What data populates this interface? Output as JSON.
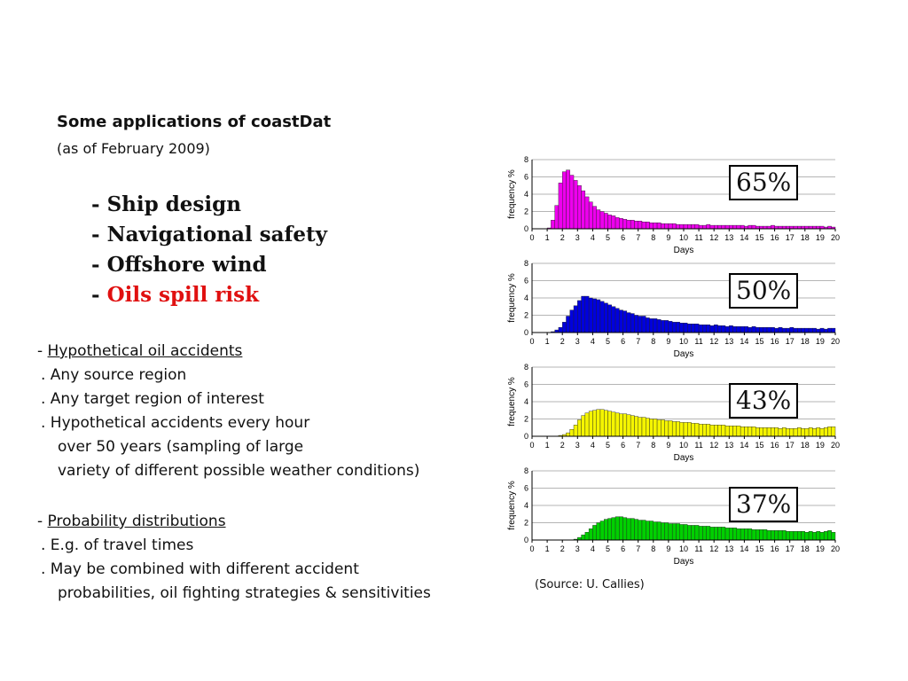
{
  "header": {
    "title": "Some applications of coastDat",
    "subtitle": "(as of February 2009)"
  },
  "applications": [
    {
      "dash": "- ",
      "label": "Ship design",
      "highlight": false
    },
    {
      "dash": "- ",
      "label": "Navigational safety",
      "highlight": false
    },
    {
      "dash": "- ",
      "label": "Offshore wind",
      "highlight": false
    },
    {
      "dash": "- ",
      "label": "Oils spill risk",
      "highlight": true
    }
  ],
  "oil_section": {
    "heading": "Hypothetical oil accidents",
    "items": [
      ". Any source region",
      ". Any target region of interest",
      ". Hypothetical accidents every hour"
    ],
    "continuation": [
      "over 50 years (sampling of large",
      "variety of different possible weather conditions)"
    ]
  },
  "prob_section": {
    "heading": "Probability distributions",
    "items": [
      ". E.g. of travel times",
      ". May be combined with different accident"
    ],
    "continuation": [
      "probabilities, oil fighting strategies & sensitivities"
    ]
  },
  "source": "(Source: U. Callies)",
  "colors": {
    "magenta": "#ee00ee",
    "blue": "#0000dd",
    "yellow": "#f5f500",
    "green": "#00d000",
    "highlight_red": "#e01010"
  },
  "chart_data": [
    {
      "type": "bar",
      "percentage": "65%",
      "color": "#ee00ee",
      "xlabel": "Days",
      "ylabel": "frequency %",
      "xlim": [
        0,
        20
      ],
      "ylim": [
        0,
        8
      ],
      "xticks": [
        "0",
        "1",
        "2",
        "3",
        "4",
        "5",
        "6",
        "7",
        "8",
        "9",
        "10",
        "11",
        "12",
        "13",
        "14",
        "15",
        "16",
        "17",
        "18",
        "19",
        "20"
      ],
      "yticks": [
        "0",
        "2",
        "4",
        "6",
        "8"
      ],
      "bin_width_days": 0.25,
      "values": [
        0,
        0,
        0,
        0,
        0.1,
        1.0,
        2.7,
        5.3,
        6.6,
        6.8,
        6.2,
        5.6,
        5.0,
        4.4,
        3.7,
        3.1,
        2.6,
        2.2,
        2.0,
        1.8,
        1.6,
        1.5,
        1.3,
        1.2,
        1.1,
        1.0,
        1.0,
        0.9,
        0.9,
        0.8,
        0.8,
        0.7,
        0.7,
        0.7,
        0.6,
        0.6,
        0.6,
        0.6,
        0.5,
        0.5,
        0.5,
        0.5,
        0.5,
        0.5,
        0.4,
        0.4,
        0.5,
        0.4,
        0.4,
        0.4,
        0.4,
        0.4,
        0.4,
        0.4,
        0.4,
        0.4,
        0.3,
        0.4,
        0.4,
        0.3,
        0.3,
        0.3,
        0.3,
        0.4,
        0.3,
        0.3,
        0.3,
        0.3,
        0.3,
        0.3,
        0.3,
        0.3,
        0.3,
        0.3,
        0.3,
        0.3,
        0.3,
        0.2,
        0.3,
        0.2
      ]
    },
    {
      "type": "bar",
      "percentage": "50%",
      "color": "#0000dd",
      "xlabel": "Days",
      "ylabel": "frequency %",
      "xlim": [
        0,
        20
      ],
      "ylim": [
        0,
        8
      ],
      "xticks": [
        "0",
        "1",
        "2",
        "3",
        "4",
        "5",
        "6",
        "7",
        "8",
        "9",
        "10",
        "11",
        "12",
        "13",
        "14",
        "15",
        "16",
        "17",
        "18",
        "19",
        "20"
      ],
      "yticks": [
        "0",
        "2",
        "4",
        "6",
        "8"
      ],
      "bin_width_days": 0.25,
      "values": [
        0,
        0,
        0,
        0,
        0,
        0.1,
        0.3,
        0.6,
        1.2,
        1.9,
        2.6,
        3.1,
        3.7,
        4.2,
        4.2,
        4.0,
        3.9,
        3.8,
        3.6,
        3.4,
        3.2,
        3.0,
        2.8,
        2.6,
        2.5,
        2.3,
        2.2,
        2.0,
        1.9,
        1.9,
        1.7,
        1.6,
        1.6,
        1.5,
        1.4,
        1.4,
        1.3,
        1.2,
        1.2,
        1.1,
        1.1,
        1.0,
        1.0,
        1.0,
        0.9,
        0.9,
        0.9,
        0.8,
        0.9,
        0.8,
        0.8,
        0.7,
        0.8,
        0.7,
        0.7,
        0.7,
        0.7,
        0.6,
        0.7,
        0.6,
        0.6,
        0.6,
        0.6,
        0.6,
        0.5,
        0.6,
        0.5,
        0.5,
        0.6,
        0.5,
        0.5,
        0.5,
        0.5,
        0.5,
        0.5,
        0.4,
        0.5,
        0.4,
        0.5,
        0.5
      ]
    },
    {
      "type": "bar",
      "percentage": "43%",
      "color": "#f5f500",
      "xlabel": "Days",
      "ylabel": "frequency %",
      "xlim": [
        0,
        20
      ],
      "ylim": [
        0,
        8
      ],
      "xticks": [
        "0",
        "1",
        "2",
        "3",
        "4",
        "5",
        "6",
        "7",
        "8",
        "9",
        "10",
        "11",
        "12",
        "13",
        "14",
        "15",
        "16",
        "17",
        "18",
        "19",
        "20"
      ],
      "yticks": [
        "0",
        "2",
        "4",
        "6",
        "8"
      ],
      "bin_width_days": 0.25,
      "values": [
        0,
        0,
        0,
        0,
        0,
        0,
        0,
        0.1,
        0.2,
        0.4,
        0.8,
        1.3,
        1.9,
        2.4,
        2.7,
        2.9,
        3.0,
        3.1,
        3.1,
        3.0,
        2.9,
        2.8,
        2.7,
        2.6,
        2.6,
        2.5,
        2.4,
        2.3,
        2.2,
        2.2,
        2.1,
        2.0,
        2.0,
        1.9,
        1.9,
        1.8,
        1.8,
        1.7,
        1.7,
        1.6,
        1.6,
        1.6,
        1.5,
        1.5,
        1.4,
        1.4,
        1.4,
        1.3,
        1.3,
        1.3,
        1.3,
        1.2,
        1.2,
        1.2,
        1.2,
        1.1,
        1.1,
        1.1,
        1.1,
        1.0,
        1.0,
        1.0,
        1.0,
        1.0,
        1.0,
        0.9,
        1.0,
        0.9,
        0.9,
        0.9,
        1.0,
        0.9,
        0.9,
        1.0,
        0.9,
        1.0,
        0.9,
        1.0,
        1.1,
        1.1
      ]
    },
    {
      "type": "bar",
      "percentage": "37%",
      "color": "#00d000",
      "xlabel": "Days",
      "ylabel": "frequency %",
      "xlim": [
        0,
        20
      ],
      "ylim": [
        0,
        8
      ],
      "xticks": [
        "0",
        "1",
        "2",
        "3",
        "4",
        "5",
        "6",
        "7",
        "8",
        "9",
        "10",
        "11",
        "12",
        "13",
        "14",
        "15",
        "16",
        "17",
        "18",
        "19",
        "20"
      ],
      "yticks": [
        "0",
        "2",
        "4",
        "6",
        "8"
      ],
      "bin_width_days": 0.25,
      "values": [
        0,
        0,
        0,
        0,
        0,
        0,
        0,
        0,
        0,
        0,
        0,
        0.1,
        0.3,
        0.6,
        0.9,
        1.3,
        1.7,
        2.0,
        2.2,
        2.4,
        2.5,
        2.6,
        2.7,
        2.7,
        2.6,
        2.5,
        2.5,
        2.4,
        2.3,
        2.3,
        2.2,
        2.2,
        2.1,
        2.1,
        2.0,
        2.0,
        1.9,
        1.9,
        1.9,
        1.8,
        1.8,
        1.7,
        1.7,
        1.7,
        1.6,
        1.6,
        1.6,
        1.5,
        1.5,
        1.5,
        1.5,
        1.4,
        1.4,
        1.4,
        1.3,
        1.3,
        1.3,
        1.3,
        1.2,
        1.2,
        1.2,
        1.2,
        1.1,
        1.1,
        1.1,
        1.1,
        1.1,
        1.0,
        1.0,
        1.0,
        1.0,
        1.0,
        0.9,
        1.0,
        0.9,
        1.0,
        0.9,
        1.0,
        1.1,
        0.9
      ]
    }
  ]
}
